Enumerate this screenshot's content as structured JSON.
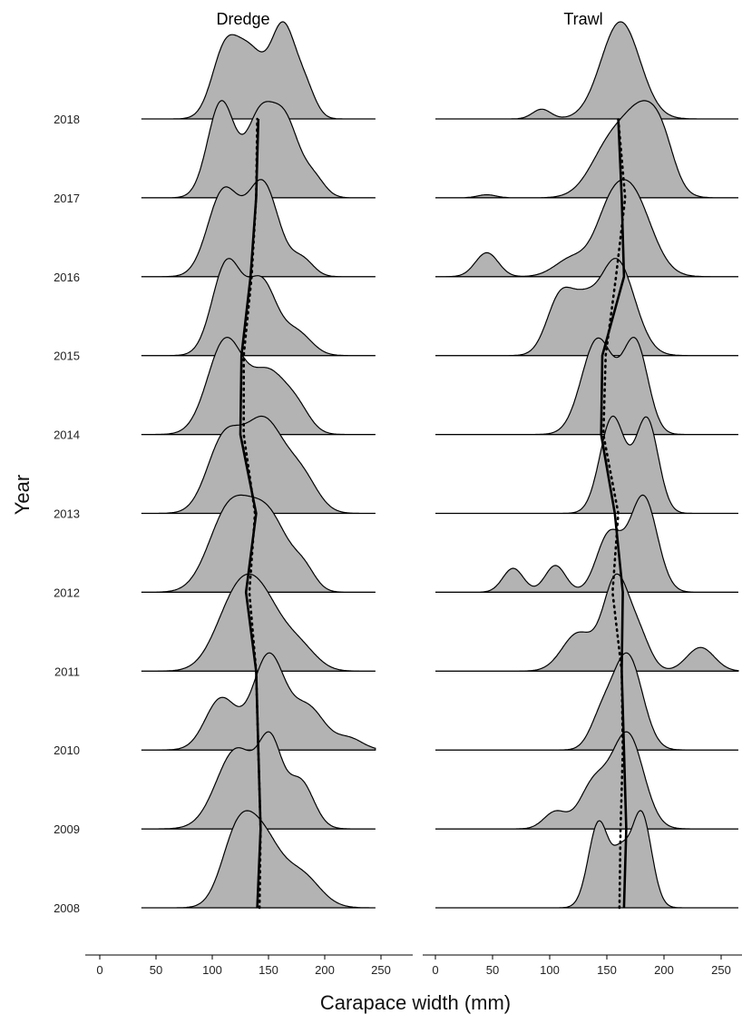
{
  "chart_data": {
    "type": "ridgeline",
    "xlabel": "Carapace width (mm)",
    "ylabel": "Year",
    "xlim": [
      -10,
      265
    ],
    "xticks": [
      0,
      50,
      100,
      150,
      200,
      250
    ],
    "years": [
      2008,
      2009,
      2010,
      2011,
      2012,
      2013,
      2014,
      2015,
      2016,
      2017,
      2018
    ],
    "panels": [
      {
        "title": "Dredge",
        "range": [
          37,
          245
        ],
        "ridges": [
          {
            "year": 2008,
            "peaks": [
              [
                122,
                0.92,
                14
              ],
              [
                145,
                0.82,
                15
              ],
              [
                178,
                0.45,
                17
              ]
            ],
            "median": 140,
            "mean": 142
          },
          {
            "year": 2009,
            "peaks": [
              [
                122,
                0.92,
                18
              ],
              [
                152,
                0.82,
                10
              ],
              [
                178,
                0.55,
                12
              ]
            ],
            "median": 143,
            "mean": 143
          },
          {
            "year": 2010,
            "peaks": [
              [
                108,
                0.55,
                14
              ],
              [
                150,
                1.0,
                14
              ],
              [
                185,
                0.45,
                15
              ],
              [
                222,
                0.12,
                12
              ]
            ],
            "median": 141,
            "mean": 141
          },
          {
            "year": 2011,
            "peaks": [
              [
                120,
                0.92,
                18
              ],
              [
                145,
                0.9,
                18
              ],
              [
                178,
                0.32,
                15
              ]
            ],
            "median": 139,
            "mean": 139
          },
          {
            "year": 2012,
            "peaks": [
              [
                115,
                0.93,
                18
              ],
              [
                150,
                0.85,
                18
              ],
              [
                182,
                0.2,
                10
              ]
            ],
            "median": 130,
            "mean": 133
          },
          {
            "year": 2013,
            "peaks": [
              [
                110,
                0.75,
                15
              ],
              [
                146,
                0.98,
                18
              ],
              [
                180,
                0.35,
                14
              ]
            ],
            "median": 139,
            "mean": 138
          },
          {
            "year": 2014,
            "peaks": [
              [
                112,
                0.98,
                16
              ],
              [
                150,
                0.6,
                15
              ],
              [
                175,
                0.25,
                12
              ]
            ],
            "median": 125,
            "mean": 128
          },
          {
            "year": 2015,
            "peaks": [
              [
                113,
                1.0,
                13
              ],
              [
                144,
                0.78,
                13
              ],
              [
                175,
                0.25,
                13
              ]
            ],
            "median": 126,
            "mean": 128
          },
          {
            "year": 2016,
            "peaks": [
              [
                110,
                0.75,
                14
              ],
              [
                145,
                0.82,
                14
              ],
              [
                180,
                0.15,
                10
              ]
            ],
            "median": 134,
            "mean": 135
          },
          {
            "year": 2017,
            "peaks": [
              [
                108,
                0.98,
                12
              ],
              [
                142,
                0.8,
                12
              ],
              [
                165,
                0.75,
                12
              ],
              [
                190,
                0.2,
                10
              ]
            ],
            "median": 139,
            "mean": 139
          },
          {
            "year": 2018,
            "peaks": [
              [
                112,
                0.78,
                12
              ],
              [
                135,
                0.65,
                12
              ],
              [
                163,
                1.0,
                11
              ],
              [
                183,
                0.3,
                9
              ]
            ],
            "median": 141,
            "mean": 140
          }
        ]
      },
      {
        "title": "Trawl",
        "range": [
          0,
          265
        ],
        "ridges": [
          {
            "year": 2008,
            "peaks": [
              [
                143,
                0.9,
                9
              ],
              [
                180,
                1.0,
                9
              ],
              [
                162,
                0.45,
                7
              ]
            ],
            "median": 165,
            "mean": 161
          },
          {
            "year": 2009,
            "peaks": [
              [
                105,
                0.18,
                10
              ],
              [
                138,
                0.45,
                12
              ],
              [
                168,
                1.0,
                14
              ]
            ],
            "median": 167,
            "mean": 162
          },
          {
            "year": 2010,
            "peaks": [
              [
                168,
                1.0,
                13
              ],
              [
                145,
                0.3,
                10
              ]
            ],
            "median": 165,
            "mean": 164
          },
          {
            "year": 2011,
            "peaks": [
              [
                125,
                0.4,
                14
              ],
              [
                158,
                0.95,
                11
              ],
              [
                178,
                0.35,
                10
              ],
              [
                232,
                0.25,
                12
              ]
            ],
            "median": 163,
            "mean": 163
          },
          {
            "year": 2012,
            "peaks": [
              [
                68,
                0.25,
                9
              ],
              [
                105,
                0.28,
                9
              ],
              [
                152,
                0.6,
                11
              ],
              [
                182,
                1.0,
                12
              ]
            ],
            "median": 164,
            "mean": 155
          },
          {
            "year": 2013,
            "peaks": [
              [
                155,
                0.9,
                11
              ],
              [
                185,
                0.88,
                10
              ]
            ],
            "median": 157,
            "mean": 160
          },
          {
            "year": 2014,
            "peaks": [
              [
                142,
                0.95,
                14
              ],
              [
                175,
                0.9,
                11
              ]
            ],
            "median": 145,
            "mean": 147
          },
          {
            "year": 2015,
            "peaks": [
              [
                110,
                0.6,
                12
              ],
              [
                158,
                0.95,
                16
              ],
              [
                130,
                0.3,
                10
              ]
            ],
            "median": 146,
            "mean": 149
          },
          {
            "year": 2016,
            "peaks": [
              [
                45,
                0.26,
                10
              ],
              [
                120,
                0.2,
                15
              ],
              [
                170,
                0.95,
                18
              ],
              [
                150,
                0.3,
                12
              ]
            ],
            "median": 165,
            "mean": 158
          },
          {
            "year": 2017,
            "peaks": [
              [
                45,
                0.03,
                8
              ],
              [
                155,
                0.55,
                18
              ],
              [
                185,
                0.75,
                16
              ],
              [
                200,
                0.2,
                10
              ]
            ],
            "median": 163,
            "mean": 166
          },
          {
            "year": 2018,
            "peaks": [
              [
                93,
                0.1,
                8
              ],
              [
                162,
                1.0,
                17
              ]
            ],
            "median": 160,
            "mean": 160
          }
        ]
      }
    ]
  }
}
